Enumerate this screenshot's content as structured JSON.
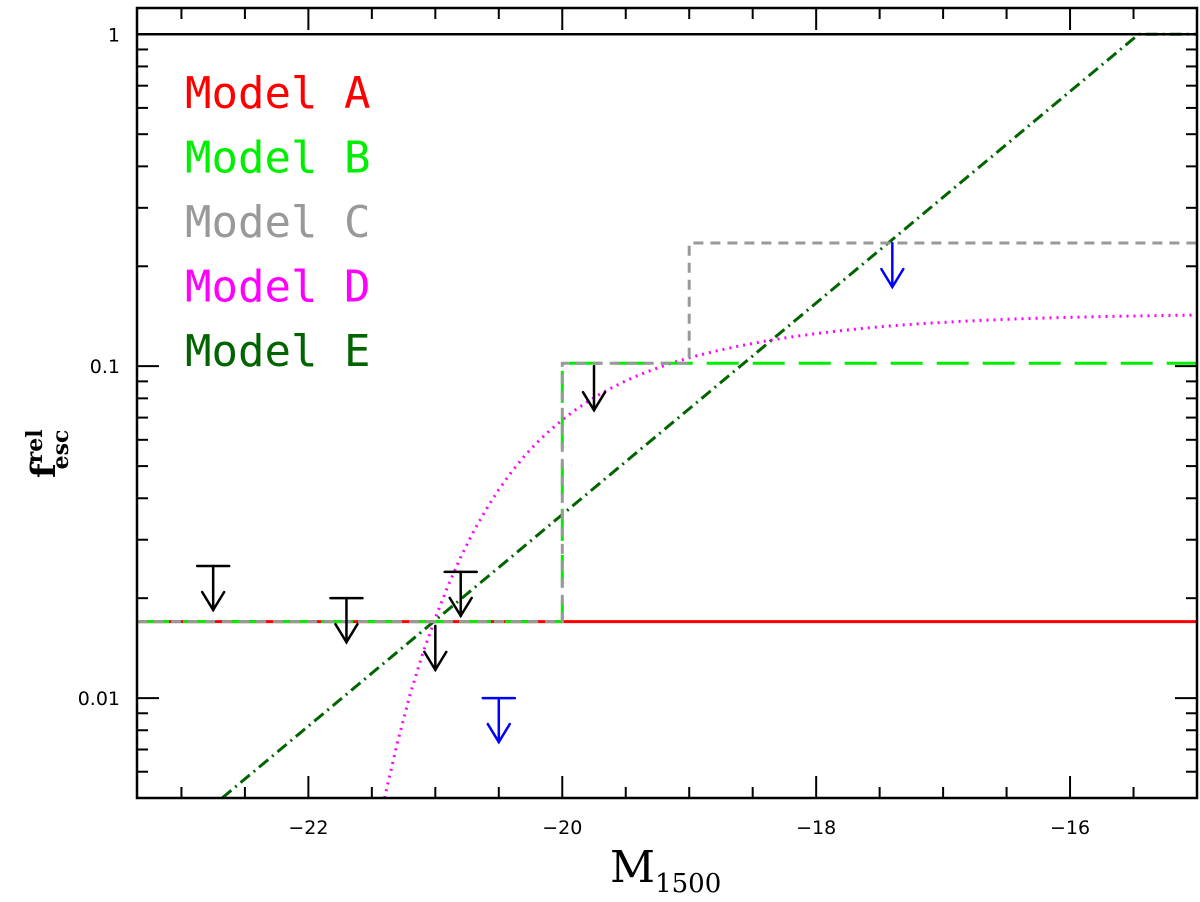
{
  "chart_data": {
    "type": "line",
    "xlabel": "M",
    "xlabel_sub": "1500",
    "ylabel": "f",
    "ylabel_sup": "rel",
    "ylabel_sub": "esc",
    "xlim": [
      -23.35,
      -15.0
    ],
    "ylim": [
      0.005,
      1.2
    ],
    "yscale": "log",
    "x_ticks": [
      -22,
      -20,
      -18,
      -16
    ],
    "x_tick_labels": [
      "−22",
      "−20",
      "−18",
      "−16"
    ],
    "y_ticks": [
      0.01,
      0.1,
      1
    ],
    "y_tick_labels": [
      "0.01",
      "0.1",
      "1"
    ],
    "grid": false,
    "legend_position": "top-left",
    "legend": [
      {
        "label": "Model A",
        "color": "#ff0000"
      },
      {
        "label": "Model B",
        "color": "#00ee00"
      },
      {
        "label": "Model C",
        "color": "#999999"
      },
      {
        "label": "Model D",
        "color": "#ff00ff"
      },
      {
        "label": "Model E",
        "color": "#006400"
      }
    ],
    "series": [
      {
        "key": "A",
        "color": "#ff0000",
        "dash": "none",
        "x": [
          -23.35,
          -15.0
        ],
        "y": [
          0.017,
          0.017
        ]
      },
      {
        "key": "E",
        "color": "#006400",
        "dash": "12 5 2 5",
        "x": [
          -22.68,
          -15.46,
          -15.0
        ],
        "y": [
          0.005,
          1.0,
          1.0
        ]
      },
      {
        "key": "D",
        "color": "#ff00ff",
        "dash": "2 5",
        "x": [
          -21.4,
          -21.3,
          -21.2,
          -21.1,
          -21.0,
          -20.9,
          -20.8,
          -20.7,
          -20.6,
          -20.5,
          -20.4,
          -20.3,
          -20.2,
          -20.1,
          -20.0,
          -19.9,
          -19.8,
          -19.7,
          -19.6,
          -19.5,
          -19.4,
          -19.3,
          -19.2,
          -19.1,
          -19.0,
          -18.8,
          -18.6,
          -18.4,
          -18.2,
          -18.0,
          -17.8,
          -17.6,
          -17.4,
          -17.2,
          -17.0,
          -16.8,
          -16.6,
          -16.4,
          -16.2,
          -16.0,
          -15.6,
          -15.2,
          -15.0
        ],
        "y": [
          0.005,
          0.0073,
          0.0102,
          0.0136,
          0.0174,
          0.0218,
          0.0266,
          0.0317,
          0.037,
          0.0425,
          0.048,
          0.0535,
          0.0588,
          0.0639,
          0.0689,
          0.0737,
          0.0782,
          0.0825,
          0.0865,
          0.0903,
          0.0939,
          0.0972,
          0.1003,
          0.1032,
          0.106,
          0.1109,
          0.1152,
          0.119,
          0.1224,
          0.1254,
          0.128,
          0.1303,
          0.1324,
          0.1341,
          0.1355,
          0.1368,
          0.1379,
          0.1389,
          0.1397,
          0.1404,
          0.1414,
          0.1422,
          0.1426
        ]
      },
      {
        "key": "B",
        "color": "#00ee00",
        "dash": "32 14",
        "x": [
          -23.35,
          -20.0,
          -20.0,
          -15.0
        ],
        "y": [
          0.017,
          0.017,
          0.102,
          0.102
        ]
      },
      {
        "key": "C",
        "color": "#999999",
        "dash": "10 7",
        "x": [
          -23.35,
          -20.0,
          -20.0,
          -19.0,
          -19.0,
          -15.0
        ],
        "y": [
          0.017,
          0.017,
          0.102,
          0.102,
          0.235,
          0.235
        ]
      }
    ],
    "upper_limits": [
      {
        "x": -22.75,
        "y": 0.025,
        "color": "#000000",
        "with_bar": true
      },
      {
        "x": -21.7,
        "y": 0.02,
        "color": "#000000",
        "with_bar": true
      },
      {
        "x": -20.8,
        "y": 0.024,
        "color": "#000000",
        "with_bar": true
      },
      {
        "x": -21.0,
        "y": 0.0165,
        "color": "#000000",
        "with_bar": false
      },
      {
        "x": -19.75,
        "y": 0.1,
        "color": "#000000",
        "with_bar": false
      },
      {
        "x": -20.5,
        "y": 0.01,
        "color": "#0000ff",
        "with_bar": true
      },
      {
        "x": -17.4,
        "y": 0.235,
        "color": "#0000ff",
        "with_bar": false
      }
    ]
  }
}
